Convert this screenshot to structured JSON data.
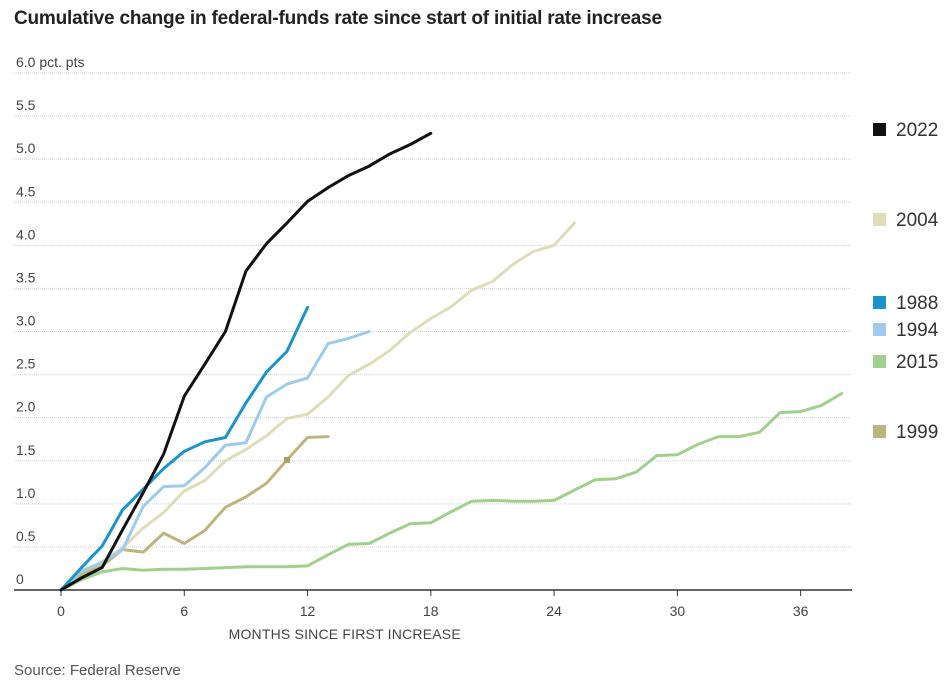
{
  "title": "Cumulative change in federal-funds rate since start of initial rate increase",
  "source": "Source: Federal Reserve",
  "chart_data": {
    "type": "line",
    "title": "Cumulative change in federal-funds rate since start of initial rate increase",
    "xlabel": "MONTHS SINCE FIRST INCREASE",
    "ylabel": "",
    "xlim": [
      0,
      38.5
    ],
    "ylim": [
      0,
      6.0
    ],
    "xticks": [
      0,
      6,
      12,
      18,
      24,
      30,
      36
    ],
    "xtick_labels": [
      "0",
      "6",
      "12",
      "18",
      "24",
      "30",
      "36"
    ],
    "yticks": [
      0,
      0.5,
      1.0,
      1.5,
      2.0,
      2.5,
      3.0,
      3.5,
      4.0,
      4.5,
      5.0,
      5.5,
      6.0
    ],
    "ytick_labels": [
      "0",
      "0.5",
      "1.0",
      "1.5",
      "2.0",
      "2.5",
      "3.0",
      "3.5",
      "4.0",
      "4.5",
      "5.0",
      "5.5",
      "6.0 pct. pts"
    ],
    "grid": true,
    "legend_position": "right",
    "series": [
      {
        "name": "2015",
        "color": "#9fd18d",
        "x": [
          0,
          1,
          2,
          3,
          4,
          5,
          6,
          7,
          8,
          9,
          10,
          11,
          12,
          13,
          14,
          15,
          16,
          17,
          18,
          19,
          20,
          21,
          22,
          23,
          24,
          25,
          26,
          27,
          28,
          29,
          30,
          31,
          32,
          33,
          34,
          35,
          36,
          37,
          38
        ],
        "y": [
          0,
          0.12,
          0.21,
          0.25,
          0.23,
          0.24,
          0.24,
          0.25,
          0.26,
          0.27,
          0.27,
          0.27,
          0.28,
          0.41,
          0.53,
          0.54,
          0.66,
          0.77,
          0.78,
          0.91,
          1.03,
          1.04,
          1.03,
          1.03,
          1.04,
          1.16,
          1.28,
          1.29,
          1.37,
          1.56,
          1.57,
          1.69,
          1.78,
          1.78,
          1.83,
          2.06,
          2.07,
          2.14,
          2.28
        ]
      },
      {
        "name": "2004",
        "color": "#dedcb9",
        "x": [
          0,
          1,
          2,
          3,
          4,
          5,
          6,
          7,
          8,
          9,
          10,
          11,
          12,
          13,
          14,
          15,
          16,
          17,
          18,
          19,
          20,
          21,
          22,
          23,
          24,
          25
        ],
        "y": [
          0,
          0.19,
          0.33,
          0.49,
          0.72,
          0.9,
          1.15,
          1.27,
          1.5,
          1.63,
          1.79,
          1.99,
          2.04,
          2.24,
          2.49,
          2.62,
          2.78,
          2.99,
          3.15,
          3.29,
          3.48,
          3.58,
          3.78,
          3.93,
          4.0,
          4.26
        ]
      },
      {
        "name": "1999",
        "color": "#bfb57c",
        "x": [
          0,
          1,
          2,
          3,
          4,
          5,
          6,
          7,
          8,
          9,
          10,
          11,
          12,
          13
        ],
        "y": [
          0,
          0.18,
          0.28,
          0.47,
          0.44,
          0.66,
          0.54,
          0.69,
          0.96,
          1.08,
          1.24,
          1.51,
          1.77,
          1.78
        ]
      },
      {
        "name": "1994",
        "color": "#9ccbee",
        "x": [
          0,
          1,
          2,
          3,
          4,
          5,
          6,
          7,
          8,
          9,
          10,
          11,
          12,
          13,
          14,
          15
        ],
        "y": [
          0,
          0.22,
          0.32,
          0.47,
          0.97,
          1.2,
          1.21,
          1.42,
          1.68,
          1.71,
          2.24,
          2.39,
          2.46,
          2.86,
          2.92,
          3.0
        ]
      },
      {
        "name": "1988",
        "color": "#1a93cf",
        "x": [
          0,
          1,
          2,
          3,
          4,
          5,
          6,
          7,
          8,
          9,
          10,
          11,
          12
        ],
        "y": [
          0,
          0.26,
          0.51,
          0.93,
          1.17,
          1.41,
          1.61,
          1.72,
          1.77,
          2.17,
          2.53,
          2.77,
          3.28
        ]
      },
      {
        "name": "2022",
        "color": "#111111",
        "x": [
          0,
          1,
          2,
          3,
          4,
          5,
          6,
          7,
          8,
          9,
          10,
          11,
          12,
          13,
          14,
          15,
          16,
          17,
          18
        ],
        "y": [
          0,
          0.14,
          0.26,
          0.7,
          1.13,
          1.58,
          2.25,
          2.62,
          3.0,
          3.7,
          4.02,
          4.26,
          4.51,
          4.67,
          4.81,
          4.92,
          5.06,
          5.17,
          5.3
        ]
      }
    ],
    "legend": [
      {
        "name": "2022",
        "color": "#111111"
      },
      {
        "name": "2004",
        "color": "#dedcb9"
      },
      {
        "name": "1988",
        "color": "#1a93cf"
      },
      {
        "name": "1994",
        "color": "#9ccbee"
      },
      {
        "name": "2015",
        "color": "#9fd18d"
      },
      {
        "name": "1999",
        "color": "#bfb57c"
      }
    ]
  }
}
